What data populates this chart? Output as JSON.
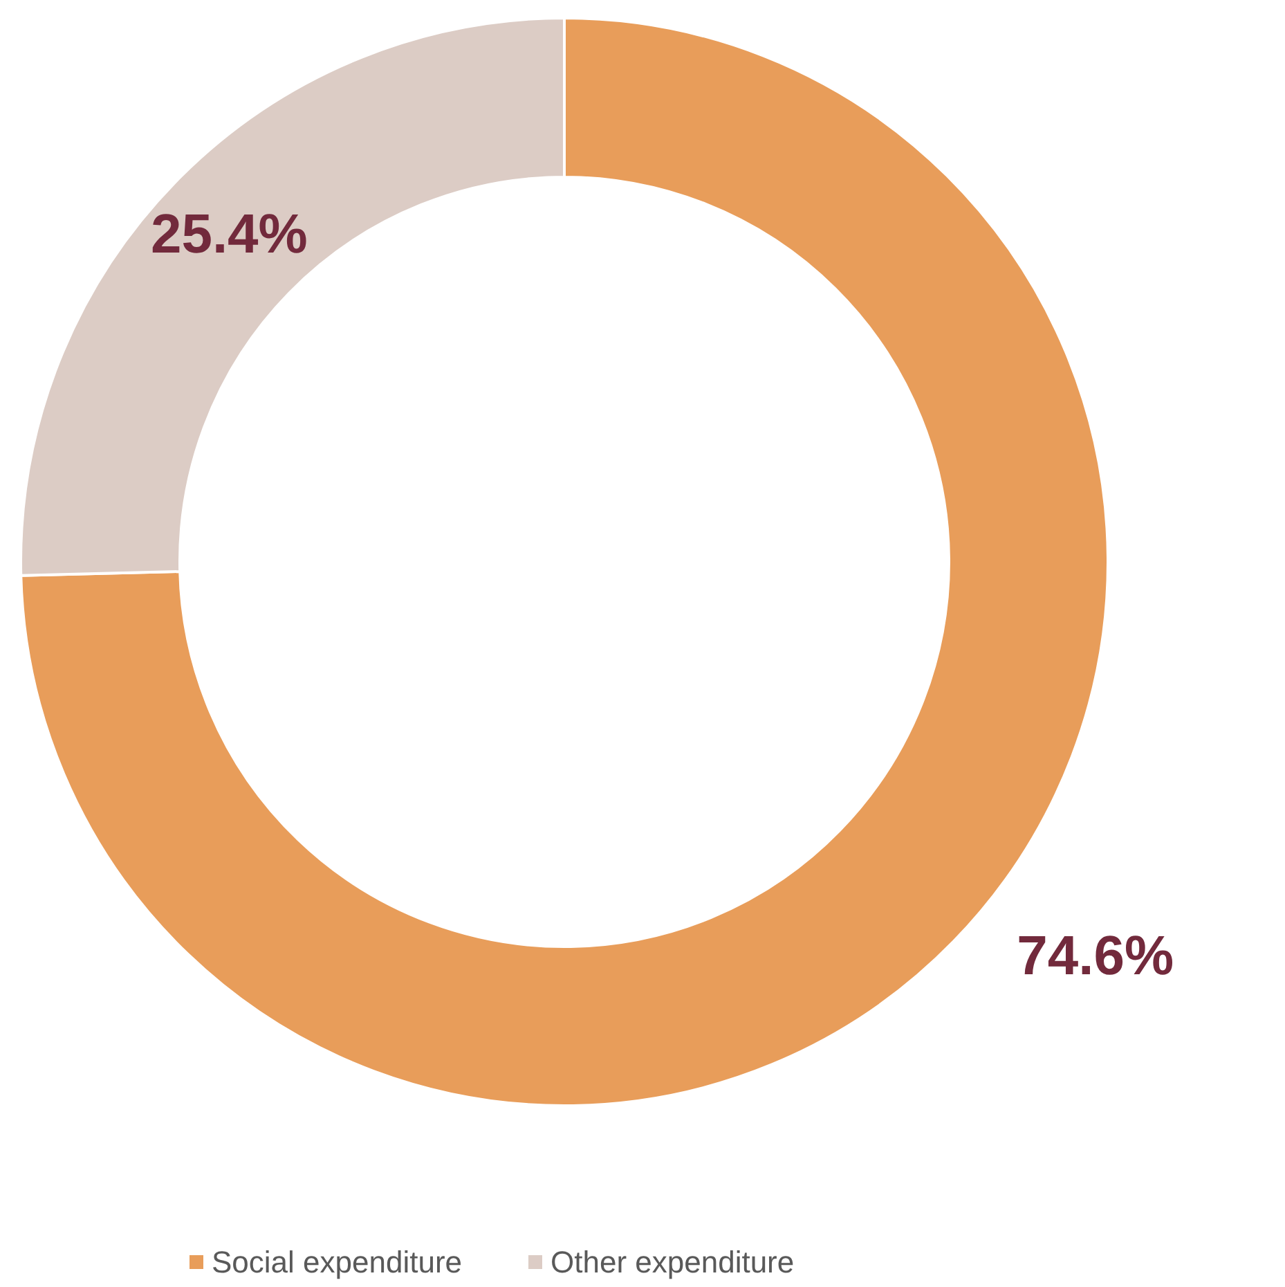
{
  "chart_data": {
    "type": "donut",
    "categories": [
      "Social expenditure",
      "Other expenditure"
    ],
    "values": [
      74.6,
      25.4
    ],
    "colors": [
      "#e89d5a",
      "#dcccc5"
    ],
    "value_labels": [
      "74.6%",
      "25.4%"
    ],
    "legend": "bottom"
  }
}
